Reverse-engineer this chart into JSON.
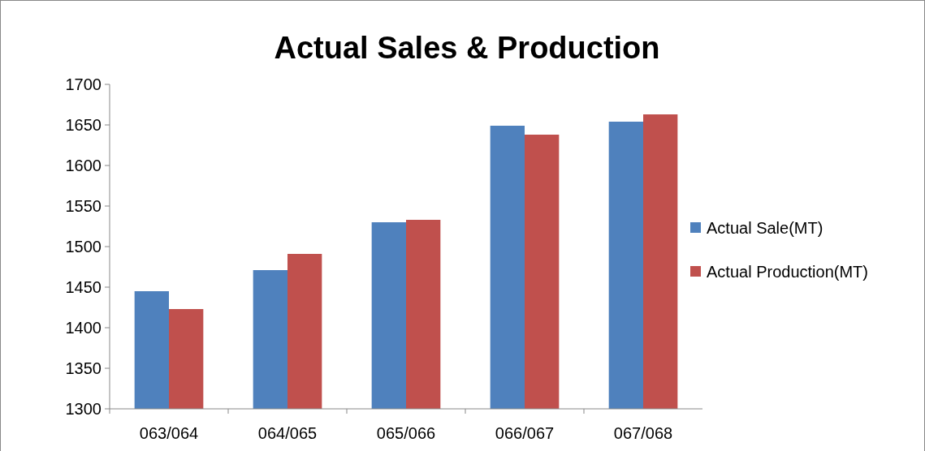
{
  "chart_data": {
    "type": "bar",
    "title": "Actual Sales & Production",
    "categories": [
      "063/064",
      "064/065",
      "065/066",
      "066/067",
      "067/068"
    ],
    "series": [
      {
        "name": "Actual Sale(MT)",
        "color": "#4f81bd",
        "values": [
          1445,
          1471,
          1530,
          1649,
          1654
        ]
      },
      {
        "name": "Actual Production(MT)",
        "color": "#c0504d",
        "values": [
          1423,
          1491,
          1533,
          1638,
          1663
        ]
      }
    ],
    "ylim": [
      1300,
      1700
    ],
    "yticks": [
      1300,
      1350,
      1400,
      1450,
      1500,
      1550,
      1600,
      1650,
      1700
    ],
    "grid": false,
    "legend": "right"
  }
}
